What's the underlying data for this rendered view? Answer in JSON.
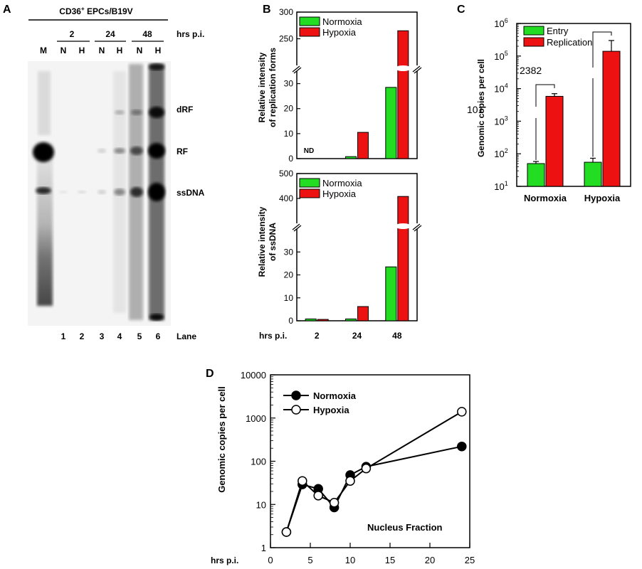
{
  "panels": {
    "a": "A",
    "b": "B",
    "c": "C",
    "d": "D"
  },
  "gel": {
    "header": "CD36",
    "header_sup": "+",
    "header_rest": " EPCs/B19V",
    "time_unit": "hrs p.i.",
    "time_points": [
      "2",
      "24",
      "48"
    ],
    "marker": "M",
    "lane_codes": [
      "N",
      "H",
      "N",
      "H",
      "N",
      "H"
    ],
    "lane_numbers": [
      "1",
      "2",
      "3",
      "4",
      "5",
      "6"
    ],
    "lane_title": "Lane",
    "bands": [
      "dRF",
      "RF",
      "ssDNA"
    ]
  },
  "chart_data": [
    {
      "id": "B-top",
      "type": "bar",
      "ylabel_line1": "Relative intensity",
      "ylabel_line2": "of replication forms",
      "broken_axis": true,
      "ylim_lower": [
        0,
        35
      ],
      "ylim_upper": [
        200,
        300
      ],
      "yticks_lower": [
        "0",
        "10",
        "20",
        "30"
      ],
      "yticks_upper": [
        "250",
        "300"
      ],
      "categories": [
        "2",
        "24",
        "48"
      ],
      "series": [
        {
          "name": "Normoxia",
          "color": "#22dd22",
          "values": [
            null,
            0.8,
            28.5
          ]
        },
        {
          "name": "Hypoxia",
          "color": "#ee1111",
          "values": [
            null,
            10.5,
            265
          ]
        }
      ],
      "annotations": [
        "ND"
      ],
      "legend_position": "top-left"
    },
    {
      "id": "B-bottom",
      "type": "bar",
      "ylabel_line1": "Relative intensity",
      "ylabel_line2": "of ssDNA",
      "xlabel": "hrs p.i.",
      "broken_axis": true,
      "ylim_lower": [
        0,
        40
      ],
      "ylim_upper": [
        300,
        500
      ],
      "yticks_lower": [
        "0",
        "10",
        "20",
        "30"
      ],
      "yticks_upper": [
        "400",
        "500"
      ],
      "categories": [
        "2",
        "24",
        "48"
      ],
      "series": [
        {
          "name": "Normoxia",
          "color": "#22dd22",
          "values": [
            0.8,
            0.8,
            23.5
          ]
        },
        {
          "name": "Hypoxia",
          "color": "#ee1111",
          "values": [
            0.6,
            6.2,
            408
          ]
        }
      ],
      "legend_position": "top-left"
    },
    {
      "id": "C",
      "type": "bar",
      "log_scale": true,
      "ylabel": "Genomic copies per cell",
      "ylim": [
        10,
        1000000
      ],
      "ytick_base": "10",
      "ytick_exponents": [
        "1",
        "2",
        "3",
        "4",
        "5",
        "6"
      ],
      "categories": [
        "Normoxia",
        "Hypoxia"
      ],
      "series": [
        {
          "name": "Entry",
          "color": "#22dd22",
          "values": [
            50,
            55
          ],
          "errors": [
            8,
            18
          ]
        },
        {
          "name": "Replication",
          "color": "#ee1111",
          "values": [
            5800,
            140000
          ],
          "errors": [
            1200,
            160000
          ]
        }
      ],
      "annotations": [
        "101",
        "2382"
      ],
      "legend_position": "top-left"
    },
    {
      "id": "D",
      "type": "line",
      "log_scale": true,
      "ylabel": "Genomic copies per cell",
      "xlabel": "hrs p.i.",
      "xlim": [
        0,
        25
      ],
      "ylim": [
        1,
        10000
      ],
      "xticks": [
        "0",
        "5",
        "10",
        "15",
        "20",
        "25"
      ],
      "yticks": [
        "1",
        "10",
        "100",
        "1000",
        "10000"
      ],
      "annotation": "Nucleus Fraction",
      "series": [
        {
          "name": "Normoxia",
          "marker": "filled-circle",
          "x": [
            2,
            4,
            6,
            8,
            10,
            12,
            24
          ],
          "y": [
            2.3,
            29,
            23,
            8.5,
            48,
            75,
            220
          ]
        },
        {
          "name": "Hypoxia",
          "marker": "open-circle",
          "x": [
            2,
            4,
            6,
            8,
            10,
            12,
            24
          ],
          "y": [
            2.3,
            35,
            16,
            11,
            35,
            68,
            1400
          ]
        }
      ],
      "legend_position": "top-left"
    }
  ]
}
